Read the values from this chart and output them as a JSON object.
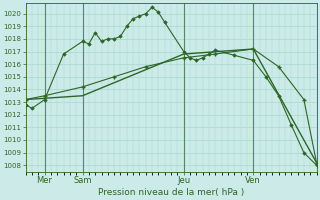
{
  "title": "Pression niveau de la mer( hPa )",
  "bg_color": "#cceae8",
  "grid_color": "#a8d8d0",
  "line_color": "#2d6627",
  "xlim": [
    0,
    46
  ],
  "ylim": [
    1007.5,
    1020.8
  ],
  "yticks": [
    1008,
    1009,
    1010,
    1011,
    1012,
    1013,
    1014,
    1015,
    1016,
    1017,
    1018,
    1019,
    1020
  ],
  "xtick_positions": [
    3,
    9,
    25,
    36
  ],
  "xtick_labels": [
    "Mer",
    "Sam",
    "Jeu",
    "Ven"
  ],
  "vlines": [
    3,
    9,
    25,
    36
  ],
  "line1_x": [
    0,
    1,
    3,
    6,
    9,
    10,
    11,
    12,
    13,
    14,
    15,
    16,
    17,
    18,
    19,
    20,
    21,
    22,
    25,
    26,
    27,
    28,
    29,
    30,
    33,
    36,
    38,
    40,
    42,
    44,
    46
  ],
  "line1_y": [
    1012.8,
    1012.5,
    1013.2,
    1016.8,
    1017.8,
    1017.6,
    1018.5,
    1017.8,
    1018.0,
    1018.0,
    1018.2,
    1019.0,
    1019.6,
    1019.8,
    1020.0,
    1020.5,
    1020.1,
    1019.3,
    1017.0,
    1016.5,
    1016.3,
    1016.5,
    1016.8,
    1017.1,
    1016.7,
    1016.3,
    1015.0,
    1013.5,
    1011.2,
    1009.0,
    1008.0
  ],
  "line2_x": [
    0,
    3,
    9,
    14,
    19,
    25,
    30,
    36,
    40,
    44,
    46
  ],
  "line2_y": [
    1013.2,
    1013.5,
    1014.2,
    1015.0,
    1015.8,
    1016.5,
    1016.8,
    1017.2,
    1015.8,
    1013.2,
    1008.2
  ],
  "line3_x": [
    0,
    9,
    25,
    36,
    46
  ],
  "line3_y": [
    1013.2,
    1013.5,
    1016.8,
    1017.2,
    1008.2
  ]
}
